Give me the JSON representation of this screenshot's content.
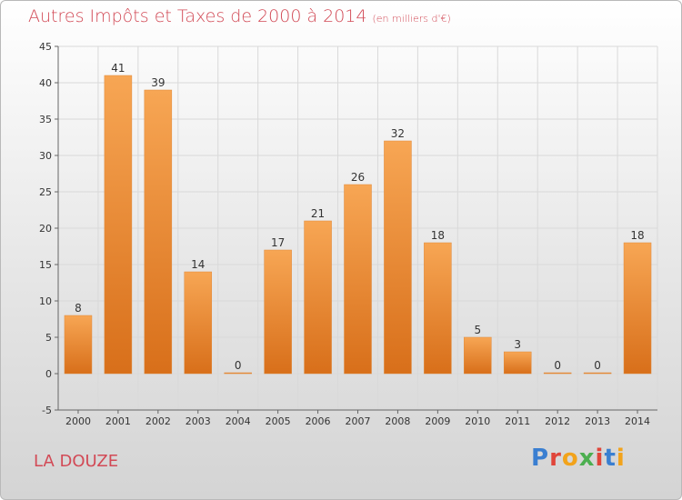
{
  "header": {
    "title": "Autres Impôts et Taxes de 2000 à 2014",
    "unit": "(en milliers d'€)"
  },
  "footer": {
    "location": "LA DOUZE",
    "brand": "Proxiti"
  },
  "colors": {
    "bar_light": "#f7a654",
    "bar_dark": "#d86f1a",
    "title": "#d24a56",
    "grid": "#d9d9d9"
  },
  "chart_data": {
    "type": "bar",
    "title": "Autres Impôts et Taxes de 2000 à 2014",
    "subtitle": "(en milliers d'€)",
    "categories": [
      "2000",
      "2001",
      "2002",
      "2003",
      "2004",
      "2005",
      "2006",
      "2007",
      "2008",
      "2009",
      "2010",
      "2011",
      "2012",
      "2013",
      "2014"
    ],
    "values": [
      8,
      41,
      39,
      14,
      0,
      17,
      21,
      26,
      32,
      18,
      5,
      3,
      0,
      0,
      18
    ],
    "ylim": [
      -5,
      45
    ],
    "yticks": [
      -5,
      0,
      5,
      10,
      15,
      20,
      25,
      30,
      35,
      40,
      45
    ],
    "grid": true,
    "xlabel": "",
    "ylabel": ""
  }
}
